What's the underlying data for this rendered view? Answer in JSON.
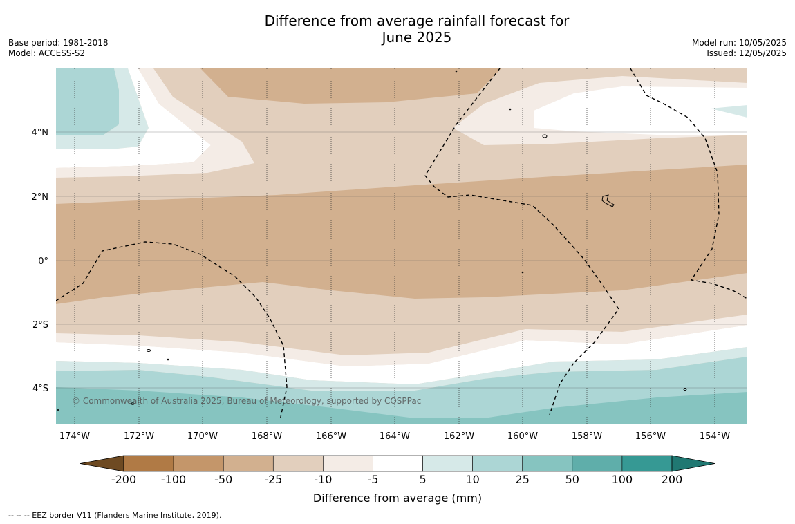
{
  "title": "Difference from average rainfall forecast for\nJune 2025",
  "title_line1": "Difference from average rainfall forecast for",
  "title_line2": "June 2025",
  "meta_left": {
    "base_period": "Base period: 1981-2018",
    "model": "Model: ACCESS-S2"
  },
  "meta_right": {
    "model_run": "Model run: 10/05/2025",
    "issued": "Issued: 12/05/2025"
  },
  "lat_labels": [
    "4°N",
    "2°N",
    "0°",
    "2°S",
    "4°S"
  ],
  "lon_labels": [
    "174°W",
    "172°W",
    "170°W",
    "168°W",
    "166°W",
    "164°W",
    "162°W",
    "160°W",
    "158°W",
    "156°W",
    "154°W"
  ],
  "copyright": "© Commonwealth of Australia 2025, Bureau of Meteorology, supported by COSPPac",
  "colorbar": {
    "ticks": [
      "-200",
      "-100",
      "-50",
      "-25",
      "-10",
      "-5",
      "5",
      "10",
      "25",
      "50",
      "100",
      "200"
    ],
    "colors": [
      "#6e4a22",
      "#b07a45",
      "#c4966a",
      "#d2b08f",
      "#e2cfbd",
      "#f4ece6",
      "#ffffff",
      "#d6e9e8",
      "#acd6d5",
      "#86c4c0",
      "#5faeaa",
      "#369994",
      "#207872"
    ],
    "label": "Difference from average (mm)"
  },
  "footer": "--  --  -- EEZ border V11 (Flanders Marine Institute, 2019)."
}
